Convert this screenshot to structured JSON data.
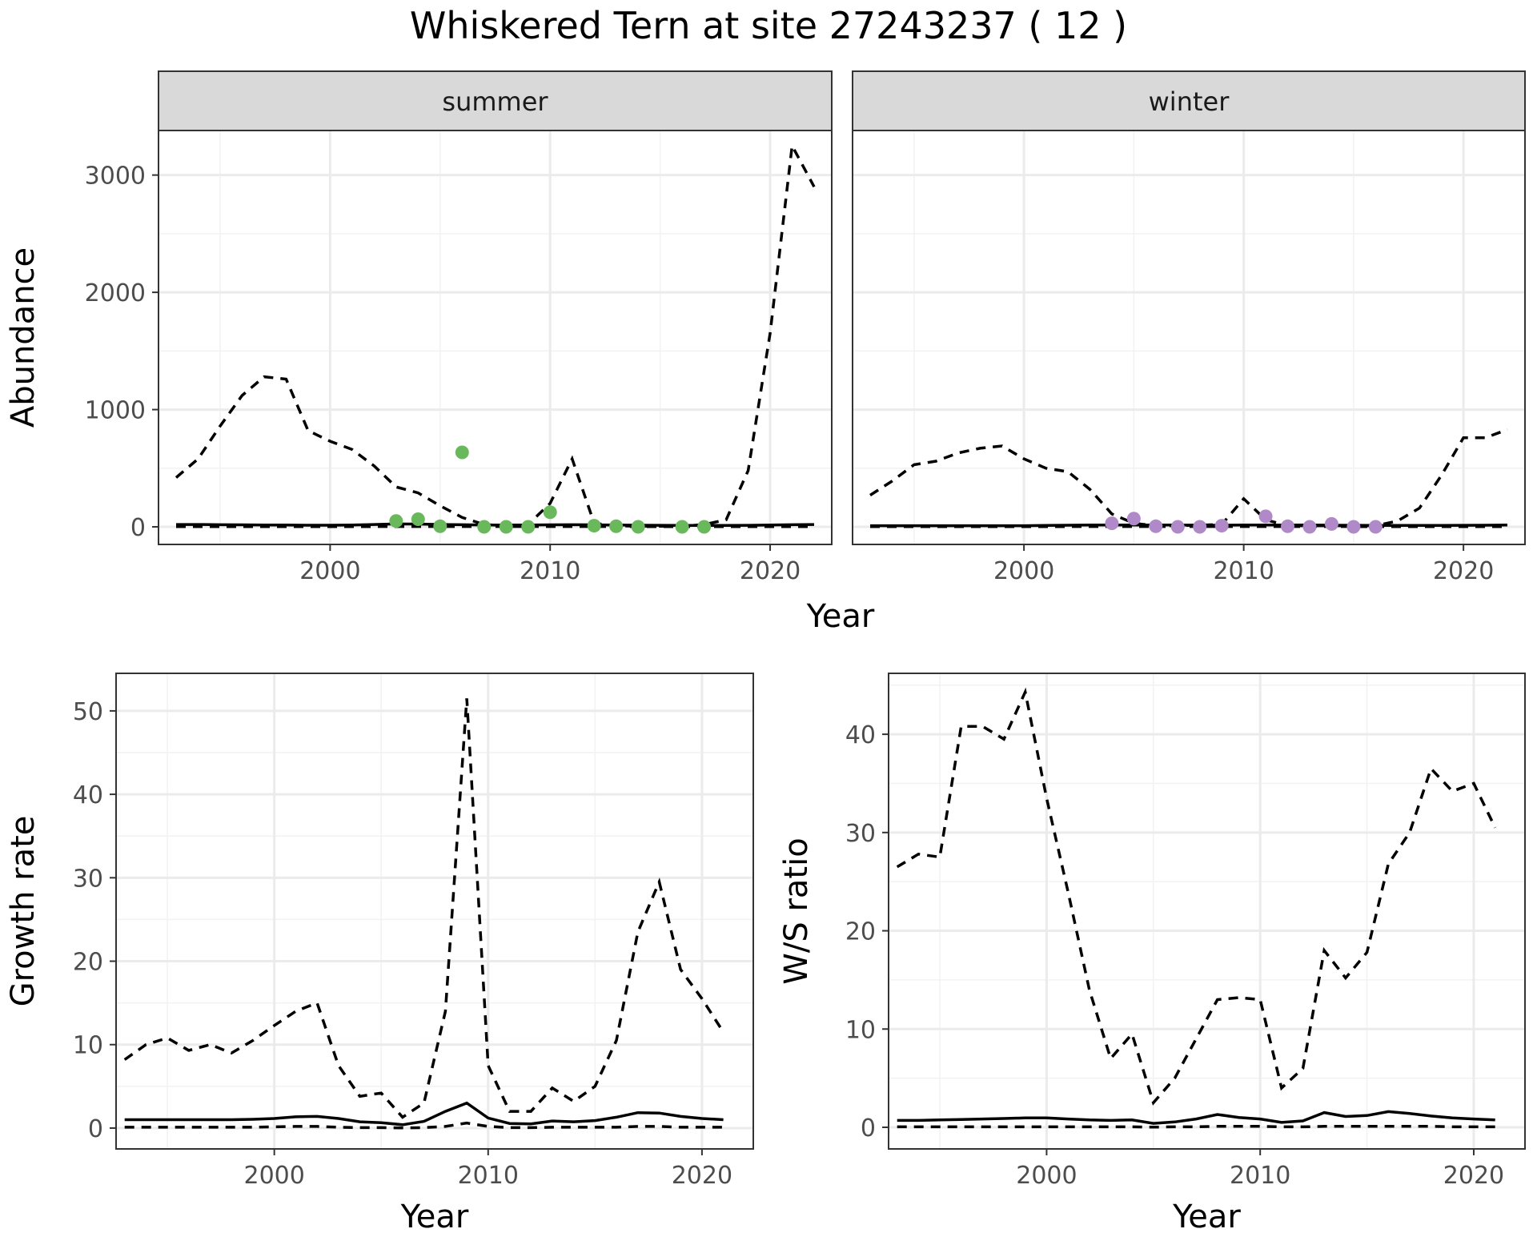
{
  "title": "Whiskered Tern at site 27243237 ( 12 )",
  "colors": {
    "summer_points": "#6ab85c",
    "winter_points": "#b08ac8",
    "lines": "#000000"
  },
  "chart_data": [
    {
      "type": "line",
      "panel": "summer",
      "strip_label": "summer",
      "xlabel": "Year",
      "ylabel": "Abundance",
      "xlim": [
        1992.2,
        2022.8
      ],
      "ylim": [
        -150,
        3380
      ],
      "x_ticks": [
        2000,
        2010,
        2020
      ],
      "y_ticks": [
        0,
        1000,
        2000,
        3000
      ],
      "grid": true,
      "x": [
        1993,
        1994,
        1995,
        1996,
        1997,
        1998,
        1999,
        2000,
        2001,
        2002,
        2003,
        2004,
        2005,
        2006,
        2007,
        2008,
        2009,
        2010,
        2011,
        2012,
        2013,
        2014,
        2015,
        2016,
        2017,
        2018,
        2019,
        2020,
        2021,
        2022
      ],
      "series": [
        {
          "style": "dashed",
          "values": [
            420,
            580,
            860,
            1120,
            1280,
            1260,
            820,
            730,
            660,
            520,
            340,
            290,
            180,
            80,
            20,
            10,
            20,
            200,
            580,
            30,
            10,
            5,
            5,
            5,
            20,
            60,
            480,
            1650,
            3250,
            2900
          ]
        },
        {
          "style": "solid",
          "values": [
            20,
            20,
            18,
            17,
            16,
            15,
            14,
            14,
            16,
            20,
            25,
            24,
            20,
            18,
            16,
            15,
            15,
            17,
            18,
            17,
            15,
            14,
            13,
            12,
            12,
            12,
            13,
            15,
            18,
            20
          ]
        },
        {
          "style": "dashed",
          "values": [
            2,
            2,
            2,
            2,
            2,
            2,
            2,
            2,
            2,
            2,
            3,
            3,
            3,
            3,
            3,
            3,
            3,
            3,
            3,
            3,
            2,
            2,
            2,
            2,
            2,
            2,
            2,
            2,
            2,
            2
          ]
        }
      ],
      "points": {
        "x": [
          2003,
          2004,
          2005,
          2006,
          2007,
          2008,
          2009,
          2010,
          2012,
          2013,
          2014,
          2016,
          2017
        ],
        "y": [
          50,
          65,
          5,
          635,
          0,
          0,
          0,
          125,
          10,
          5,
          0,
          0,
          0
        ]
      }
    },
    {
      "type": "line",
      "panel": "winter",
      "strip_label": "winter",
      "xlabel": "Year",
      "ylabel": "Abundance",
      "xlim": [
        1992.2,
        2022.8
      ],
      "ylim": [
        -150,
        3380
      ],
      "x_ticks": [
        2000,
        2010,
        2020
      ],
      "y_ticks": [
        0,
        1000,
        2000,
        3000
      ],
      "grid": true,
      "x": [
        1993,
        1994,
        1995,
        1996,
        1997,
        1998,
        1999,
        2000,
        2001,
        2002,
        2003,
        2004,
        2005,
        2006,
        2007,
        2008,
        2009,
        2010,
        2011,
        2012,
        2013,
        2014,
        2015,
        2016,
        2017,
        2018,
        2019,
        2020,
        2021,
        2022
      ],
      "series": [
        {
          "style": "dashed",
          "values": [
            270,
            390,
            530,
            560,
            630,
            670,
            690,
            580,
            500,
            470,
            320,
            110,
            30,
            10,
            10,
            15,
            20,
            240,
            60,
            10,
            10,
            10,
            10,
            10,
            50,
            160,
            440,
            760,
            760,
            830
          ]
        },
        {
          "style": "solid",
          "values": [
            10,
            10,
            10,
            10,
            10,
            10,
            10,
            10,
            12,
            14,
            16,
            16,
            16,
            16,
            15,
            14,
            14,
            15,
            16,
            16,
            15,
            14,
            13,
            12,
            12,
            12,
            12,
            13,
            14,
            15
          ]
        },
        {
          "style": "dashed",
          "values": [
            2,
            2,
            2,
            2,
            2,
            2,
            2,
            2,
            2,
            2,
            3,
            3,
            3,
            3,
            3,
            3,
            3,
            3,
            3,
            3,
            3,
            3,
            2,
            2,
            2,
            2,
            2,
            2,
            2,
            2
          ]
        }
      ],
      "points": {
        "x": [
          2004,
          2005,
          2006,
          2007,
          2008,
          2009,
          2011,
          2012,
          2013,
          2014,
          2015,
          2016
        ],
        "y": [
          30,
          70,
          5,
          0,
          0,
          10,
          90,
          5,
          0,
          25,
          0,
          0
        ]
      }
    },
    {
      "type": "line",
      "panel": "growth",
      "xlabel": "Year",
      "ylabel": "Growth rate",
      "xlim": [
        1992.6,
        2022.4
      ],
      "ylim": [
        -2.5,
        54.5
      ],
      "x_ticks": [
        2000,
        2010,
        2020
      ],
      "y_ticks": [
        0,
        10,
        20,
        30,
        40,
        50
      ],
      "grid": true,
      "x": [
        1993,
        1994,
        1995,
        1996,
        1997,
        1998,
        1999,
        2000,
        2001,
        2002,
        2003,
        2004,
        2005,
        2006,
        2007,
        2008,
        2009,
        2010,
        2011,
        2012,
        2013,
        2014,
        2015,
        2016,
        2017,
        2018,
        2019,
        2020,
        2021
      ],
      "series": [
        {
          "style": "dashed",
          "values": [
            8.2,
            10.0,
            10.8,
            9.3,
            10.0,
            9.0,
            10.5,
            12.3,
            14.0,
            15.0,
            7.5,
            3.8,
            4.2,
            1.3,
            3.0,
            14.0,
            51.5,
            7.5,
            2.0,
            2.0,
            4.8,
            3.2,
            5.0,
            10.5,
            23.5,
            29.5,
            19.0,
            15.5,
            11.5
          ]
        },
        {
          "style": "solid",
          "values": [
            1.0,
            1.0,
            1.0,
            1.0,
            1.0,
            1.0,
            1.05,
            1.15,
            1.35,
            1.4,
            1.15,
            0.75,
            0.65,
            0.4,
            0.8,
            2.0,
            3.0,
            1.2,
            0.55,
            0.5,
            0.85,
            0.75,
            0.9,
            1.3,
            1.85,
            1.8,
            1.4,
            1.15,
            1.0
          ]
        },
        {
          "style": "dashed",
          "values": [
            0.1,
            0.1,
            0.1,
            0.1,
            0.1,
            0.1,
            0.1,
            0.15,
            0.2,
            0.2,
            0.1,
            0.05,
            0.05,
            0.02,
            0.05,
            0.2,
            0.6,
            0.2,
            0.05,
            0.05,
            0.1,
            0.1,
            0.1,
            0.1,
            0.2,
            0.2,
            0.1,
            0.1,
            0.1
          ]
        }
      ]
    },
    {
      "type": "line",
      "panel": "ws_ratio",
      "xlabel": "Year",
      "ylabel": "W/S ratio",
      "xlim": [
        1992.6,
        2022.4
      ],
      "ylim": [
        -2.2,
        46.2
      ],
      "x_ticks": [
        2000,
        2010,
        2020
      ],
      "y_ticks": [
        0,
        10,
        20,
        30,
        40
      ],
      "grid": true,
      "x": [
        1993,
        1994,
        1995,
        1996,
        1997,
        1998,
        1999,
        2000,
        2001,
        2002,
        2003,
        2004,
        2005,
        2006,
        2007,
        2008,
        2009,
        2010,
        2011,
        2012,
        2013,
        2014,
        2015,
        2016,
        2017,
        2018,
        2019,
        2020,
        2021
      ],
      "series": [
        {
          "style": "dashed",
          "values": [
            26.5,
            27.8,
            27.5,
            40.8,
            40.8,
            39.5,
            44.3,
            33.5,
            24.0,
            14.0,
            7.0,
            9.5,
            2.5,
            5.0,
            9.0,
            13.0,
            13.2,
            13.0,
            4.0,
            6.0,
            18.0,
            15.2,
            17.8,
            26.8,
            30.0,
            36.5,
            34.2,
            35.0,
            30.5
          ]
        },
        {
          "style": "solid",
          "values": [
            0.7,
            0.7,
            0.75,
            0.8,
            0.85,
            0.9,
            0.95,
            0.95,
            0.85,
            0.75,
            0.7,
            0.75,
            0.4,
            0.55,
            0.85,
            1.3,
            1.0,
            0.85,
            0.5,
            0.65,
            1.5,
            1.1,
            1.2,
            1.6,
            1.4,
            1.15,
            0.95,
            0.85,
            0.75
          ]
        },
        {
          "style": "dashed",
          "values": [
            0.05,
            0.05,
            0.05,
            0.05,
            0.05,
            0.05,
            0.05,
            0.05,
            0.05,
            0.05,
            0.05,
            0.05,
            0.02,
            0.05,
            0.05,
            0.1,
            0.1,
            0.1,
            0.05,
            0.05,
            0.1,
            0.1,
            0.1,
            0.1,
            0.1,
            0.1,
            0.05,
            0.05,
            0.05
          ]
        }
      ]
    }
  ]
}
